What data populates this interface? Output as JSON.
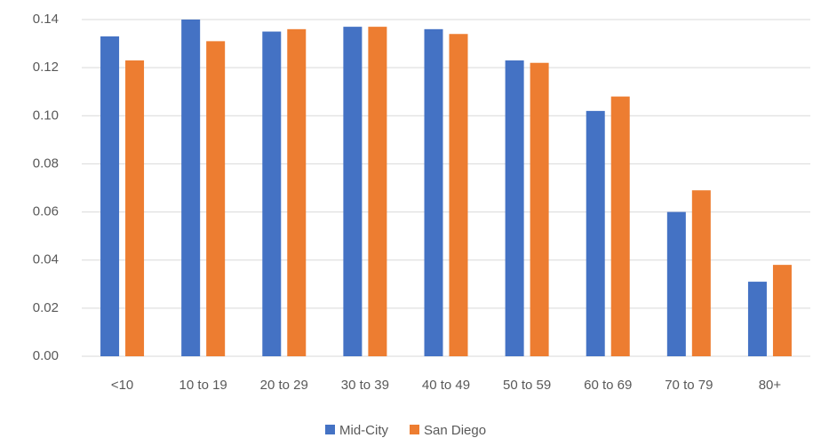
{
  "chart_data": {
    "type": "bar",
    "categories": [
      "<10",
      "10 to 19",
      "20 to 29",
      "30 to 39",
      "40 to 49",
      "50 to 59",
      "60 to 69",
      "70 to 79",
      "80+"
    ],
    "series": [
      {
        "name": "Mid-City",
        "color": "#4472c4",
        "values": [
          0.133,
          0.14,
          0.135,
          0.137,
          0.136,
          0.123,
          0.102,
          0.06,
          0.031
        ]
      },
      {
        "name": "San Diego",
        "color": "#ed7d31",
        "values": [
          0.123,
          0.131,
          0.136,
          0.137,
          0.134,
          0.122,
          0.108,
          0.069,
          0.038
        ]
      }
    ],
    "ylim": [
      0,
      0.14
    ],
    "yticks": [
      {
        "value": 0,
        "label": "0.00"
      },
      {
        "value": 0.02,
        "label": "0.02"
      },
      {
        "value": 0.04,
        "label": "0.04"
      },
      {
        "value": 0.06,
        "label": "0.06"
      },
      {
        "value": 0.08,
        "label": "0.08"
      },
      {
        "value": 0.1,
        "label": "0.10"
      },
      {
        "value": 0.12,
        "label": "0.12"
      },
      {
        "value": 0.14,
        "label": "0.14"
      }
    ],
    "grid": true,
    "legend": "bottom"
  }
}
